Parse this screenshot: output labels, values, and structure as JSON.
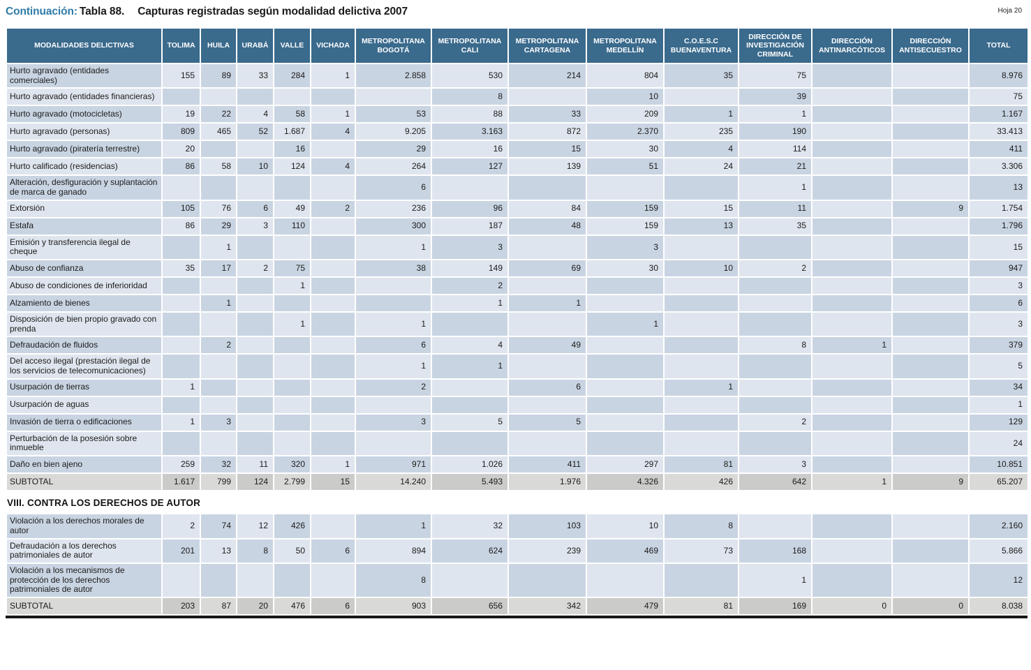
{
  "page": {
    "prefix": "Continuación:",
    "table_ref": "Tabla 88.",
    "title": "Capturas registradas según modalidad delictiva 2007",
    "sheet_label": "Hoja 20"
  },
  "colors": {
    "accent": "#2e7ca7",
    "header_bg": "#3a6a8c",
    "cell_dark": "#c9d4e2",
    "cell_light": "#dfe5ee",
    "subtotal_dark": "#cbcbc9",
    "subtotal_light": "#d9d9d7",
    "bottom_rule": "#161616"
  },
  "table": {
    "columns": [
      "MODALIDADES DELICTIVAS",
      "TOLIMA",
      "HUILA",
      "URABÁ",
      "VALLE",
      "VICHADA",
      "METROPOLITANA BOGOTÁ",
      "METROPOLITANA CALI",
      "METROPOLITANA CARTAGENA",
      "METROPOLITANA MEDELLÍN",
      "C.O.E.S.C BUENAVENTURA",
      "DIRECCIÓN DE INVESTIGACIÓN CRIMINAL",
      "DIRECCIÓN ANTINARCÓTICOS",
      "DIRECCIÓN ANTISECUESTRO",
      "TOTAL"
    ],
    "sections": [
      {
        "heading": null,
        "rows": [
          {
            "label": "Hurto agravado (entidades comerciales)",
            "type": "data",
            "values": [
              "155",
              "89",
              "33",
              "284",
              "1",
              "2.858",
              "530",
              "214",
              "804",
              "35",
              "75",
              "",
              "",
              "8.976"
            ]
          },
          {
            "label": "Hurto agravado (entidades financieras)",
            "type": "data",
            "values": [
              "",
              "",
              "",
              "",
              "",
              "",
              "8",
              "",
              "10",
              "",
              "39",
              "",
              "",
              "75"
            ]
          },
          {
            "label": "Hurto agravado (motocicletas)",
            "type": "data",
            "values": [
              "19",
              "22",
              "4",
              "58",
              "1",
              "53",
              "88",
              "33",
              "209",
              "1",
              "1",
              "",
              "",
              "1.167"
            ]
          },
          {
            "label": "Hurto agravado (personas)",
            "type": "data",
            "values": [
              "809",
              "465",
              "52",
              "1.687",
              "4",
              "9.205",
              "3.163",
              "872",
              "2.370",
              "235",
              "190",
              "",
              "",
              "33.413"
            ]
          },
          {
            "label": "Hurto agravado (piratería terrestre)",
            "type": "data",
            "values": [
              "20",
              "",
              "",
              "16",
              "",
              "29",
              "16",
              "15",
              "30",
              "4",
              "114",
              "",
              "",
              "411"
            ]
          },
          {
            "label": "Hurto calificado (residencias)",
            "type": "data",
            "values": [
              "86",
              "58",
              "10",
              "124",
              "4",
              "264",
              "127",
              "139",
              "51",
              "24",
              "21",
              "",
              "",
              "3.306"
            ]
          },
          {
            "label": "Alteración, desfiguración y suplantación de marca de ganado",
            "type": "data",
            "values": [
              "",
              "",
              "",
              "",
              "",
              "6",
              "",
              "",
              "",
              "",
              "1",
              "",
              "",
              "13"
            ]
          },
          {
            "label": "Extorsión",
            "type": "data",
            "values": [
              "105",
              "76",
              "6",
              "49",
              "2",
              "236",
              "96",
              "84",
              "159",
              "15",
              "11",
              "",
              "9",
              "1.754"
            ]
          },
          {
            "label": "Estafa",
            "type": "data",
            "values": [
              "86",
              "29",
              "3",
              "110",
              "",
              "300",
              "187",
              "48",
              "159",
              "13",
              "35",
              "",
              "",
              "1.796"
            ]
          },
          {
            "label": "Emisión y transferencia ilegal de cheque",
            "type": "data",
            "values": [
              "",
              "1",
              "",
              "",
              "",
              "1",
              "3",
              "",
              "3",
              "",
              "",
              "",
              "",
              "15"
            ]
          },
          {
            "label": "Abuso de confianza",
            "type": "data",
            "values": [
              "35",
              "17",
              "2",
              "75",
              "",
              "38",
              "149",
              "69",
              "30",
              "10",
              "2",
              "",
              "",
              "947"
            ]
          },
          {
            "label": "Abuso de condiciones de inferioridad",
            "type": "data",
            "values": [
              "",
              "",
              "",
              "1",
              "",
              "",
              "2",
              "",
              "",
              "",
              "",
              "",
              "",
              "3"
            ]
          },
          {
            "label": "Alzamiento de bienes",
            "type": "data",
            "values": [
              "",
              "1",
              "",
              "",
              "",
              "",
              "1",
              "1",
              "",
              "",
              "",
              "",
              "",
              "6"
            ]
          },
          {
            "label": "Disposición de bien propio gravado con prenda",
            "type": "data",
            "values": [
              "",
              "",
              "",
              "1",
              "",
              "1",
              "",
              "",
              "1",
              "",
              "",
              "",
              "",
              "3"
            ]
          },
          {
            "label": "Defraudación de fluidos",
            "type": "data",
            "values": [
              "",
              "2",
              "",
              "",
              "",
              "6",
              "4",
              "49",
              "",
              "",
              "8",
              "1",
              "",
              "379"
            ]
          },
          {
            "label": "Del acceso ilegal (prestación ilegal de los servicios de telecomunicaciones)",
            "type": "data",
            "values": [
              "",
              "",
              "",
              "",
              "",
              "1",
              "1",
              "",
              "",
              "",
              "",
              "",
              "",
              "5"
            ]
          },
          {
            "label": "Usurpación de tierras",
            "type": "data",
            "values": [
              "1",
              "",
              "",
              "",
              "",
              "2",
              "",
              "6",
              "",
              "1",
              "",
              "",
              "",
              "34"
            ]
          },
          {
            "label": "Usurpación de aguas",
            "type": "data",
            "values": [
              "",
              "",
              "",
              "",
              "",
              "",
              "",
              "",
              "",
              "",
              "",
              "",
              "",
              "1"
            ]
          },
          {
            "label": "Invasión de tierra o edificaciones",
            "type": "data",
            "values": [
              "1",
              "3",
              "",
              "",
              "",
              "3",
              "5",
              "5",
              "",
              "",
              "2",
              "",
              "",
              "129"
            ]
          },
          {
            "label": "Perturbación de la posesión sobre inmueble",
            "type": "data",
            "values": [
              "",
              "",
              "",
              "",
              "",
              "",
              "",
              "",
              "",
              "",
              "",
              "",
              "",
              "24"
            ]
          },
          {
            "label": "Daño en bien ajeno",
            "type": "data",
            "values": [
              "259",
              "32",
              "11",
              "320",
              "1",
              "971",
              "1.026",
              "411",
              "297",
              "81",
              "3",
              "",
              "",
              "10.851"
            ]
          },
          {
            "label": "SUBTOTAL",
            "type": "subtotal",
            "values": [
              "1.617",
              "799",
              "124",
              "2.799",
              "15",
              "14.240",
              "5.493",
              "1.976",
              "4.326",
              "426",
              "642",
              "1",
              "9",
              "65.207"
            ]
          }
        ]
      },
      {
        "heading": "VIII. CONTRA LOS DERECHOS DE AUTOR",
        "rows": [
          {
            "label": "Violación a los derechos morales de autor",
            "type": "data",
            "values": [
              "2",
              "74",
              "12",
              "426",
              "",
              "1",
              "32",
              "103",
              "10",
              "8",
              "",
              "",
              "",
              "2.160"
            ]
          },
          {
            "label": "Defraudación a los derechos patrimoniales de autor",
            "type": "data",
            "values": [
              "201",
              "13",
              "8",
              "50",
              "6",
              "894",
              "624",
              "239",
              "469",
              "73",
              "168",
              "",
              "",
              "5.866"
            ]
          },
          {
            "label": "Violación a los mecanismos de protección de los derechos patrimoniales de autor",
            "type": "data",
            "values": [
              "",
              "",
              "",
              "",
              "",
              "8",
              "",
              "",
              "",
              "",
              "1",
              "",
              "",
              "12"
            ]
          },
          {
            "label": "SUBTOTAL",
            "type": "subtotal",
            "values": [
              "203",
              "87",
              "20",
              "476",
              "6",
              "903",
              "656",
              "342",
              "479",
              "81",
              "169",
              "0",
              "0",
              "8.038"
            ]
          }
        ]
      }
    ]
  }
}
